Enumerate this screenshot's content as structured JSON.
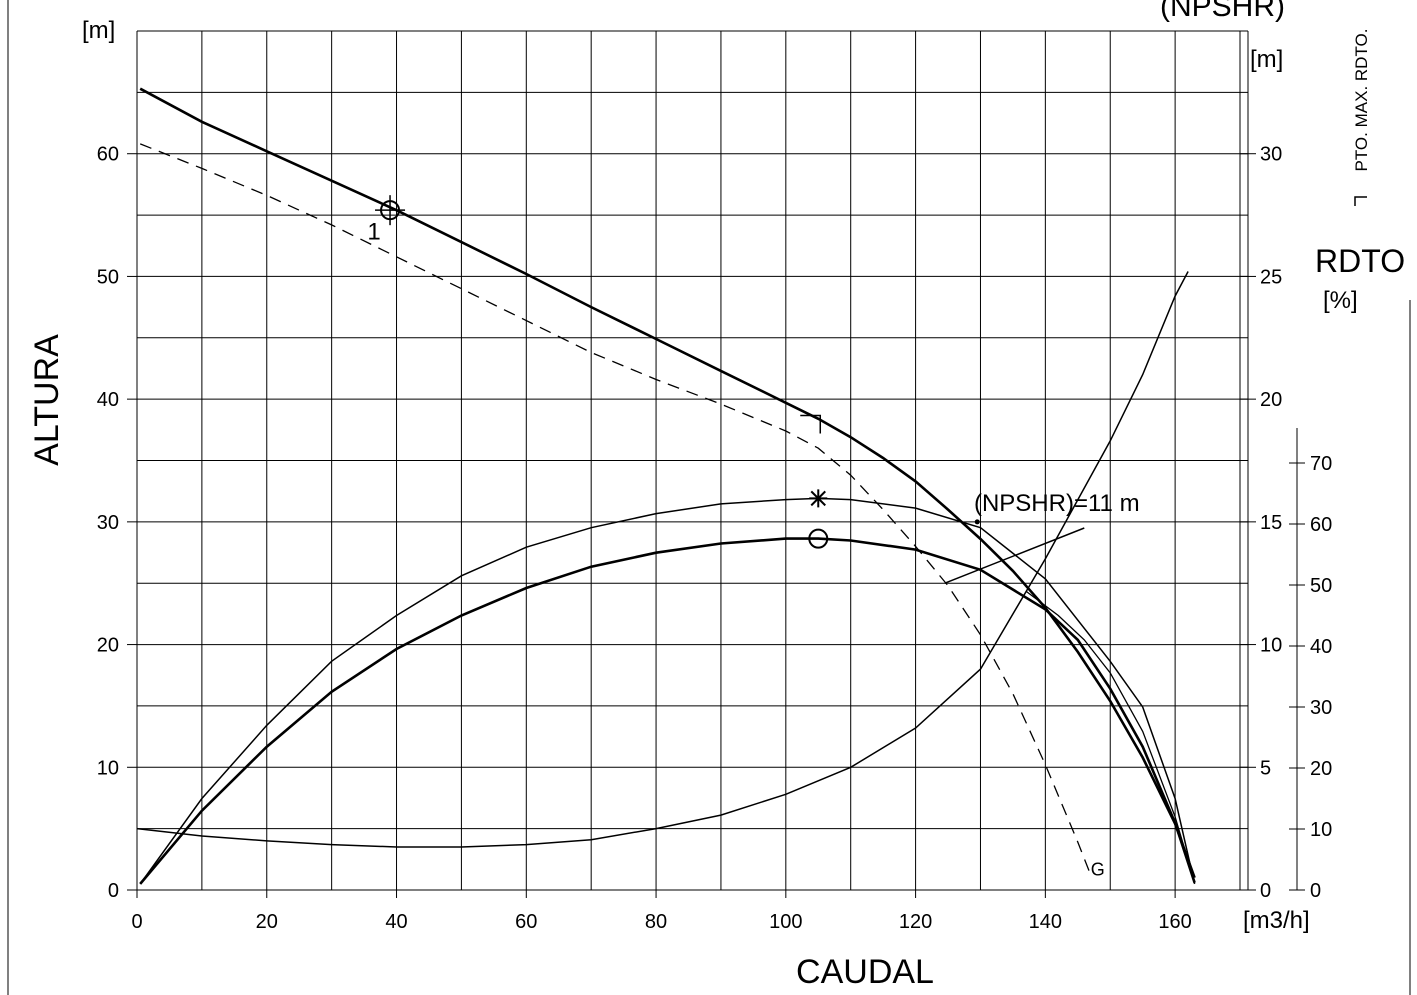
{
  "chart_data": {
    "type": "line",
    "title": "",
    "xlabel": "CAUDAL",
    "x_unit": "[m3/h]",
    "xlim": [
      0,
      170
    ],
    "x_ticks": [
      0,
      20,
      40,
      60,
      80,
      100,
      120,
      140,
      160
    ],
    "ylabel": "ALTURA",
    "y_unit": "[m]",
    "ylim": [
      0,
      70
    ],
    "y_ticks": [
      0,
      10,
      20,
      30,
      40,
      50,
      60
    ],
    "npshr_axis": {
      "label": "(NPSHR)",
      "unit": "[m]",
      "ticks": [
        0,
        5,
        10,
        15,
        20,
        25,
        30
      ],
      "range": [
        0,
        35
      ]
    },
    "rdto_axis": {
      "label": "RDTO",
      "unit": "[%]",
      "ticks": [
        0,
        10,
        20,
        30,
        40,
        50,
        60,
        70
      ],
      "range": [
        0,
        70
      ]
    },
    "legend_note": "PTO. MAX. RDTO.",
    "grid": true,
    "series": [
      {
        "key": "head_main",
        "axis": "head",
        "width": 2.6,
        "dash": "",
        "points": [
          [
            0.5,
            65.3
          ],
          [
            10,
            62.6
          ],
          [
            20,
            60.2
          ],
          [
            30,
            57.8
          ],
          [
            40,
            55.4
          ],
          [
            50,
            52.8
          ],
          [
            60,
            50.2
          ],
          [
            70,
            47.5
          ],
          [
            80,
            44.9
          ],
          [
            90,
            42.3
          ],
          [
            100,
            39.7
          ],
          [
            105,
            38.4
          ],
          [
            110,
            36.9
          ],
          [
            115,
            35.2
          ],
          [
            120,
            33.3
          ],
          [
            125,
            31.0
          ],
          [
            130,
            28.6
          ],
          [
            135,
            26.0
          ],
          [
            140,
            23.0
          ],
          [
            145,
            19.4
          ],
          [
            150,
            15.4
          ],
          [
            155,
            10.8
          ],
          [
            160,
            5.4
          ],
          [
            163,
            1.0
          ]
        ]
      },
      {
        "key": "head_dashed",
        "axis": "head",
        "width": 1.3,
        "dash": "12,8",
        "points": [
          [
            0.5,
            60.8
          ],
          [
            10,
            58.8
          ],
          [
            20,
            56.6
          ],
          [
            30,
            54.2
          ],
          [
            40,
            51.6
          ],
          [
            50,
            49.0
          ],
          [
            60,
            46.4
          ],
          [
            70,
            43.8
          ],
          [
            80,
            41.6
          ],
          [
            90,
            39.6
          ],
          [
            100,
            37.4
          ],
          [
            105,
            36.0
          ],
          [
            110,
            33.8
          ],
          [
            115,
            31.0
          ],
          [
            120,
            28.0
          ],
          [
            125,
            24.8
          ],
          [
            130,
            20.8
          ],
          [
            135,
            16.0
          ],
          [
            140,
            10.2
          ],
          [
            145,
            3.9
          ],
          [
            147,
            1.2
          ]
        ]
      },
      {
        "key": "npshr",
        "axis": "npshr",
        "width": 1.5,
        "dash": "",
        "points": [
          [
            0,
            2.5
          ],
          [
            10,
            2.2
          ],
          [
            20,
            2.0
          ],
          [
            30,
            1.85
          ],
          [
            40,
            1.75
          ],
          [
            50,
            1.75
          ],
          [
            60,
            1.85
          ],
          [
            70,
            2.05
          ],
          [
            80,
            2.5
          ],
          [
            90,
            3.05
          ],
          [
            100,
            3.9
          ],
          [
            110,
            5.0
          ],
          [
            120,
            6.6
          ],
          [
            130,
            9.0
          ],
          [
            140,
            13.5
          ],
          [
            150,
            18.3
          ],
          [
            155,
            21.0
          ],
          [
            160,
            24.2
          ],
          [
            162,
            25.2
          ]
        ]
      },
      {
        "key": "efficiency_thin",
        "axis": "rdto",
        "width": 1.5,
        "dash": "",
        "points": [
          [
            0.5,
            1
          ],
          [
            10,
            15
          ],
          [
            20,
            27
          ],
          [
            30,
            37.5
          ],
          [
            40,
            45
          ],
          [
            50,
            51.5
          ],
          [
            60,
            56.2
          ],
          [
            70,
            59.4
          ],
          [
            80,
            61.7
          ],
          [
            90,
            63.3
          ],
          [
            100,
            64.0
          ],
          [
            105,
            64.2
          ],
          [
            110,
            64.0
          ],
          [
            120,
            62.6
          ],
          [
            130,
            59.4
          ],
          [
            140,
            51.0
          ],
          [
            150,
            37.5
          ],
          [
            155,
            30.0
          ],
          [
            160,
            15.0
          ],
          [
            163,
            1
          ]
        ]
      },
      {
        "key": "efficiency_thick",
        "axis": "rdto",
        "width": 2.6,
        "dash": "",
        "points": [
          [
            0.5,
            1
          ],
          [
            10,
            13
          ],
          [
            20,
            23.5
          ],
          [
            30,
            32.5
          ],
          [
            40,
            39.5
          ],
          [
            50,
            45
          ],
          [
            60,
            49.5
          ],
          [
            70,
            53
          ],
          [
            80,
            55.3
          ],
          [
            90,
            56.8
          ],
          [
            100,
            57.6
          ],
          [
            105,
            57.6
          ],
          [
            110,
            57.3
          ],
          [
            120,
            55.8
          ],
          [
            130,
            52.5
          ],
          [
            140,
            46.0
          ],
          [
            145,
            41.0
          ],
          [
            150,
            33.0
          ],
          [
            155,
            23.5
          ],
          [
            160,
            11.0
          ],
          [
            163,
            1.2
          ]
        ]
      },
      {
        "key": "rdto_curve2",
        "axis": "rdto",
        "width": 1.3,
        "dash": "",
        "points": [
          [
            137,
            49
          ],
          [
            142,
            45
          ],
          [
            146,
            41
          ],
          [
            150,
            35.6
          ],
          [
            155,
            26
          ],
          [
            160,
            12
          ],
          [
            163,
            1.2
          ]
        ]
      }
    ],
    "segments": [
      {
        "key": "npshr_line",
        "from": [
          124.5,
          25.0
        ],
        "to": [
          146,
          29.5
        ]
      }
    ],
    "annotations": [
      {
        "key": "label_1",
        "text": "1",
        "x": 35.5,
        "y": 53.0
      },
      {
        "key": "label_npshr",
        "text": "(NPSHR)=11 m",
        "x": 129,
        "y": 30.9
      },
      {
        "key": "label_g",
        "text": "G",
        "x": 147,
        "y": 1.2
      }
    ],
    "markers": [
      {
        "key": "operating_point",
        "shape": "circle-cross",
        "x": 39,
        "y": 55.4
      },
      {
        "key": "bep_head",
        "shape": "corner",
        "x": 105,
        "y": 38.5
      },
      {
        "key": "bep_efficiency_thin",
        "shape": "star",
        "x": 105,
        "y": 64.2
      },
      {
        "key": "bep_efficiency_thick",
        "shape": "circle",
        "x": 105,
        "y": 57.6
      },
      {
        "key": "npshr_point",
        "shape": "dot",
        "x": 129.5,
        "y": 30
      }
    ]
  }
}
